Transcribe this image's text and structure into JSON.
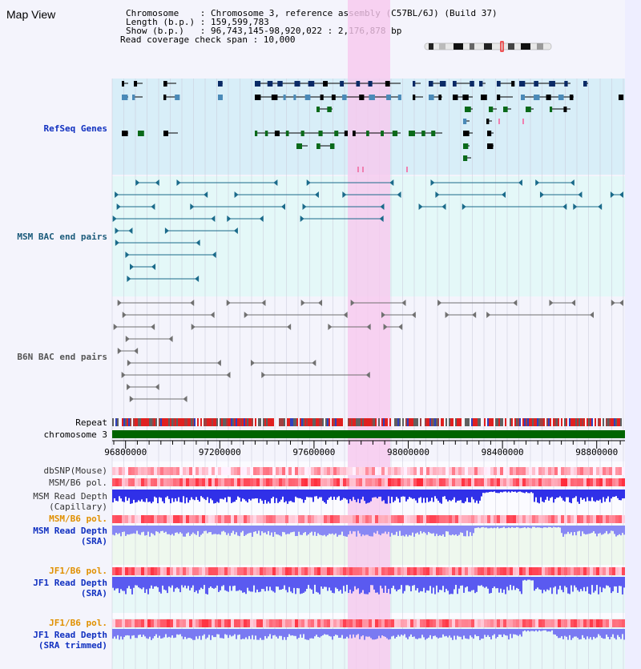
{
  "title": "Map View",
  "info": {
    "line1": "Chromosome    : Chromosome 3, reference assembly (C57BL/6J) (Build 37)",
    "line2": "Length (b.p.) : 159,599,783",
    "line3": "Show (b.p.)   : 96,743,145-98,920,022 : 2,176,878 bp",
    "line4": "Read coverage check span : 10,000"
  },
  "tracks": {
    "refseq": "RefSeq Genes",
    "msm_bac": "MSM BAC end pairs",
    "b6n_bac": "B6N BAC end pairs",
    "repeat": "Repeat",
    "chromosome": "chromosome 3",
    "dbsnp": "dbSNP(Mouse)",
    "msm_b6_pol_a": "MSM/B6 pol.",
    "msm_depth_cap_1": "MSM Read Depth",
    "msm_depth_cap_2": "(Capillary)",
    "msm_b6_pol_b": "MSM/B6 pol.",
    "msm_depth_sra_1": "MSM Read Depth",
    "msm_depth_sra_2": "(SRA)",
    "jf1_b6_pol_a": "JF1/B6 pol.",
    "jf1_depth_sra_1": "JF1 Read Depth",
    "jf1_depth_sra_2": "(SRA)",
    "jf1_b6_pol_b": "JF1/B6 pol.",
    "jf1_depth_trim_1": "JF1 Read Depth",
    "jf1_depth_trim_2": "(SRA trimmed)"
  },
  "axis": {
    "ticks": [
      "96800000",
      "97200000",
      "97600000",
      "98000000",
      "98400000",
      "98800000"
    ],
    "range": [
      96743145,
      98920022
    ]
  },
  "colors": {
    "highlight": "#f8d0f0",
    "refseq_bg": "#d8eef8",
    "msm_bg": "#e4f8f8",
    "b6n_bg": "#f4f4fc",
    "gene_navy": "#0a2a66",
    "gene_steel": "#4a8ab8",
    "gene_green": "#0a6a1a",
    "bac_teal": "#1a6a8a",
    "bac_gray": "#707070",
    "chrom_green": "#006400",
    "depth_blue": "#5050f0",
    "pol_red": "#e04040",
    "label_blue": "#1030c0",
    "label_orange": "#e09000",
    "label_gray": "#333333"
  }
}
